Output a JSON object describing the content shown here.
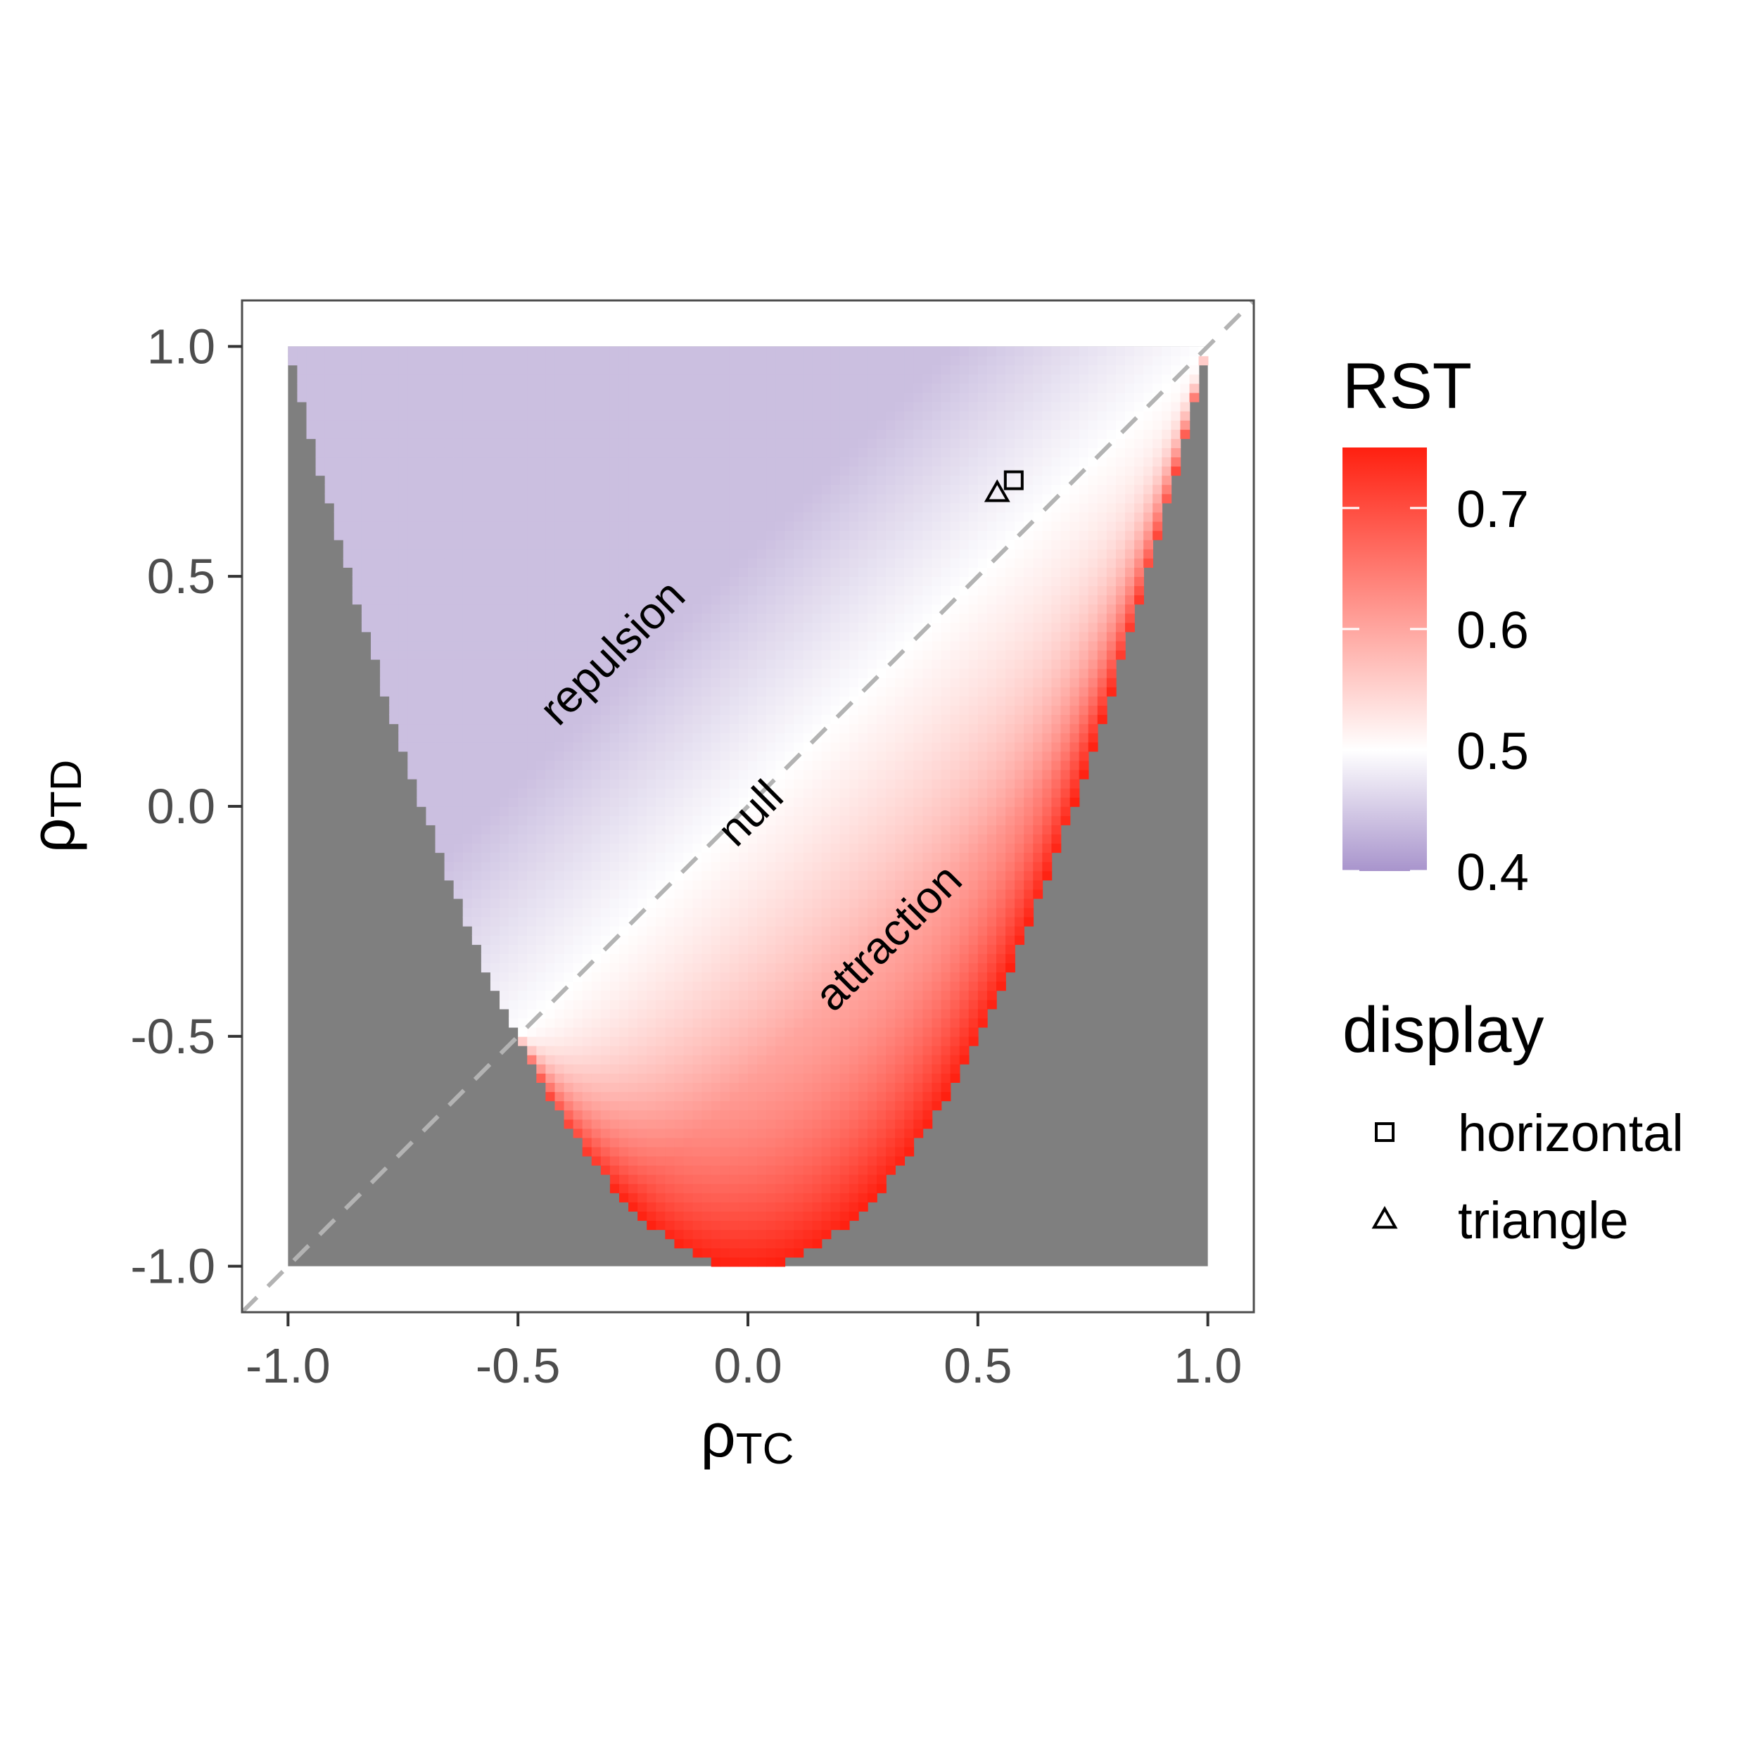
{
  "chart_data": {
    "type": "heatmap",
    "x_axis": {
      "label_symbol": "ρ",
      "label_subscript": "TC",
      "range": [
        -1.1,
        1.1
      ],
      "ticks": [
        -1.0,
        -0.5,
        0.0,
        0.5,
        1.0
      ],
      "tick_labels": [
        "-1.0",
        "-0.5",
        "0.0",
        "0.5",
        "1.0"
      ]
    },
    "y_axis": {
      "label_symbol": "ρ",
      "label_subscript": "TD",
      "range": [
        -1.1,
        1.1
      ],
      "ticks": [
        -1.0,
        -0.5,
        0.0,
        0.5,
        1.0
      ],
      "tick_labels": [
        "-1.0",
        "-0.5",
        "0.0",
        "0.5",
        "1.0"
      ]
    },
    "domain": {
      "x_range": [
        -1.0,
        1.0
      ],
      "y_range": [
        -1.0,
        1.0
      ],
      "feasible_region": "y >= 2*x^2 - 1",
      "infeasible_color": "#7f7f7f"
    },
    "reference_line": {
      "slope": 1,
      "intercept": 0,
      "style": "dashed",
      "color": "#b3b3b3"
    },
    "color_scale": {
      "title": "RST",
      "min": 0.4,
      "max": 0.75,
      "midpoint": 0.5,
      "low_color": "#a894cc",
      "mid_color": "#ffffff",
      "high_color": "#ff2010",
      "ticks": [
        0.4,
        0.5,
        0.6,
        0.7
      ],
      "tick_labels": [
        "0.4",
        "0.5",
        "0.6",
        "0.7"
      ]
    },
    "annotations": [
      {
        "text": "repulsion",
        "x": -0.29,
        "y": 0.33,
        "angle": -45
      },
      {
        "text": "null",
        "x": 0.01,
        "y": -0.02,
        "angle": -45
      },
      {
        "text": "attraction",
        "x": 0.31,
        "y": -0.29,
        "angle": -45
      }
    ],
    "points": [
      {
        "display": "horizontal",
        "shape": "square",
        "x": 0.578,
        "y": 0.709
      },
      {
        "display": "triangle",
        "shape": "triangle",
        "x": 0.542,
        "y": 0.682
      }
    ],
    "legend": {
      "title": "display",
      "entries": [
        {
          "label": "horizontal",
          "shape": "square"
        },
        {
          "label": "triangle",
          "shape": "triangle"
        }
      ]
    }
  }
}
